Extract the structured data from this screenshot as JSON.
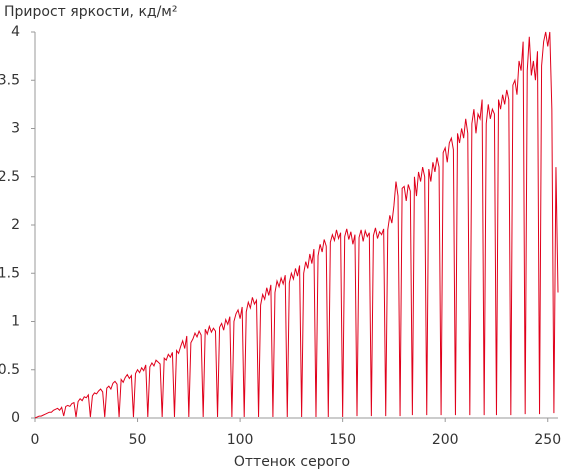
{
  "chart_data": {
    "type": "line",
    "title": "Прирост яркости, кд/м²",
    "x_label": "Оттенок серого",
    "color": "#e0001b",
    "grid": false,
    "xlim": [
      0,
      255
    ],
    "xticks": [
      0,
      50,
      100,
      150,
      200,
      250
    ],
    "ylim": [
      0,
      4
    ],
    "yticks": [
      0,
      0.5,
      1,
      1.5,
      2,
      2.5,
      3,
      3.5,
      4
    ],
    "x": [
      0,
      1,
      2,
      3,
      4,
      5,
      6,
      7,
      8,
      9,
      10,
      11,
      12,
      13,
      14,
      15,
      16,
      17,
      18,
      19,
      20,
      21,
      22,
      23,
      24,
      25,
      26,
      27,
      28,
      29,
      30,
      31,
      32,
      33,
      34,
      35,
      36,
      37,
      38,
      39,
      40,
      41,
      42,
      43,
      44,
      45,
      46,
      47,
      48,
      49,
      50,
      51,
      52,
      53,
      54,
      55,
      56,
      57,
      58,
      59,
      60,
      61,
      62,
      63,
      64,
      65,
      66,
      67,
      68,
      69,
      70,
      71,
      72,
      73,
      74,
      75,
      76,
      77,
      78,
      79,
      80,
      81,
      82,
      83,
      84,
      85,
      86,
      87,
      88,
      89,
      90,
      91,
      92,
      93,
      94,
      95,
      96,
      97,
      98,
      99,
      100,
      101,
      102,
      103,
      104,
      105,
      106,
      107,
      108,
      109,
      110,
      111,
      112,
      113,
      114,
      115,
      116,
      117,
      118,
      119,
      120,
      121,
      122,
      123,
      124,
      125,
      126,
      127,
      128,
      129,
      130,
      131,
      132,
      133,
      134,
      135,
      136,
      137,
      138,
      139,
      140,
      141,
      142,
      143,
      144,
      145,
      146,
      147,
      148,
      149,
      150,
      151,
      152,
      153,
      154,
      155,
      156,
      157,
      158,
      159,
      160,
      161,
      162,
      163,
      164,
      165,
      166,
      167,
      168,
      169,
      170,
      171,
      172,
      173,
      174,
      175,
      176,
      177,
      178,
      179,
      180,
      181,
      182,
      183,
      184,
      185,
      186,
      187,
      188,
      189,
      190,
      191,
      192,
      193,
      194,
      195,
      196,
      197,
      198,
      199,
      200,
      201,
      202,
      203,
      204,
      205,
      206,
      207,
      208,
      209,
      210,
      211,
      212,
      213,
      214,
      215,
      216,
      217,
      218,
      219,
      220,
      221,
      222,
      223,
      224,
      225,
      226,
      227,
      228,
      229,
      230,
      231,
      232,
      233,
      234,
      235,
      236,
      237,
      238,
      239,
      240,
      241,
      242,
      243,
      244,
      245,
      246,
      247,
      248,
      249,
      250,
      251,
      252,
      253,
      254,
      255
    ],
    "values": [
      0,
      0.01,
      0.02,
      0.02,
      0.03,
      0.04,
      0.05,
      0.06,
      0.06,
      0.08,
      0.09,
      0.1,
      0.08,
      0.11,
      0.02,
      0.12,
      0.13,
      0.12,
      0.15,
      0.16,
      0.01,
      0.17,
      0.2,
      0.18,
      0.22,
      0.21,
      0.24,
      0.01,
      0.23,
      0.26,
      0.25,
      0.28,
      0.3,
      0.27,
      0.01,
      0.31,
      0.33,
      0.3,
      0.36,
      0.38,
      0.35,
      0.01,
      0.4,
      0.37,
      0.42,
      0.45,
      0.41,
      0.44,
      0.01,
      0.46,
      0.5,
      0.47,
      0.52,
      0.49,
      0.55,
      0.01,
      0.53,
      0.57,
      0.54,
      0.6,
      0.58,
      0.56,
      0.01,
      0.62,
      0.6,
      0.66,
      0.63,
      0.68,
      0.01,
      0.7,
      0.67,
      0.74,
      0.8,
      0.72,
      0.85,
      0.01,
      0.78,
      0.82,
      0.88,
      0.84,
      0.9,
      0.86,
      0.01,
      0.92,
      0.87,
      0.95,
      0.89,
      0.93,
      0.9,
      0.01,
      0.94,
      0.98,
      0.91,
      1.02,
      0.97,
      1.05,
      0.01,
      1.0,
      1.08,
      1.12,
      1.03,
      1.15,
      0.01,
      1.1,
      1.2,
      1.14,
      1.25,
      1.18,
      1.22,
      0.01,
      1.17,
      1.28,
      1.23,
      1.35,
      1.27,
      1.38,
      0.01,
      1.3,
      1.42,
      1.36,
      1.45,
      1.39,
      1.48,
      0.01,
      1.4,
      1.5,
      1.44,
      1.55,
      1.47,
      1.58,
      0.01,
      1.5,
      1.62,
      1.55,
      1.7,
      1.6,
      1.75,
      0.01,
      1.68,
      1.8,
      1.72,
      1.85,
      1.78,
      0.01,
      1.82,
      1.9,
      1.84,
      1.95,
      1.86,
      1.92,
      0.01,
      1.88,
      1.96,
      1.85,
      1.93,
      1.8,
      1.9,
      0.02,
      1.87,
      1.95,
      1.83,
      1.94,
      1.88,
      1.92,
      0.02,
      1.89,
      1.97,
      1.86,
      1.93,
      1.9,
      1.96,
      0.02,
      1.95,
      2.1,
      2.02,
      2.2,
      2.45,
      2.3,
      0.02,
      2.38,
      2.4,
      2.25,
      2.42,
      2.35,
      0.03,
      2.5,
      2.3,
      2.55,
      2.45,
      2.6,
      2.5,
      0.03,
      2.58,
      2.45,
      2.65,
      2.55,
      2.7,
      2.6,
      0.03,
      2.75,
      2.8,
      2.65,
      2.85,
      2.9,
      2.78,
      0.03,
      2.95,
      2.85,
      3.0,
      2.9,
      3.1,
      2.95,
      0.03,
      3.05,
      3.2,
      2.95,
      3.15,
      3.1,
      3.3,
      0.03,
      3.05,
      3.25,
      3.1,
      3.2,
      3.15,
      0.03,
      3.3,
      3.2,
      3.35,
      3.25,
      3.4,
      3.3,
      0.03,
      3.45,
      3.5,
      3.35,
      3.7,
      3.6,
      3.9,
      0.04,
      3.6,
      3.95,
      3.55,
      3.7,
      3.5,
      3.8,
      0.04,
      3.65,
      3.9,
      4.0,
      3.85,
      4.0,
      3.2,
      0.05,
      2.6,
      1.3
    ]
  }
}
